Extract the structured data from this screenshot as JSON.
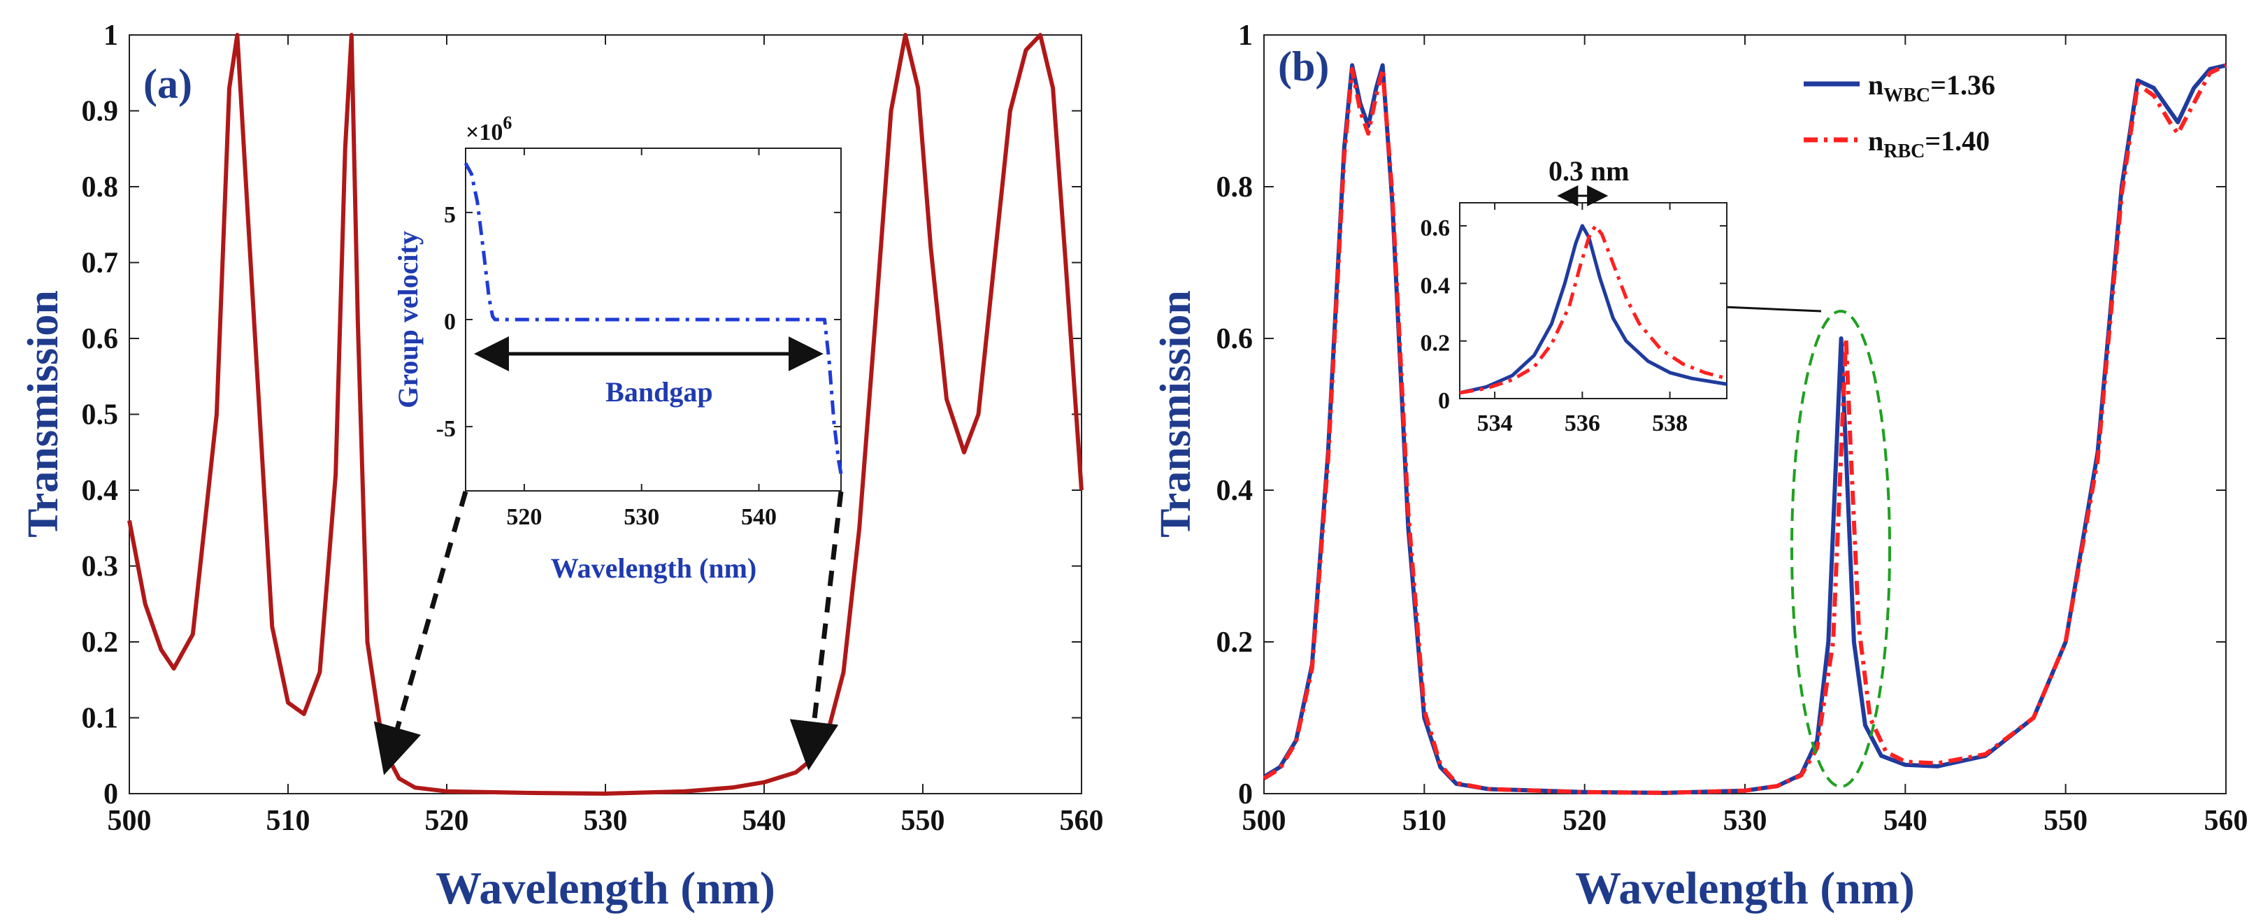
{
  "chart_data": [
    {
      "panel_label": "(a)",
      "type": "line",
      "xlabel": "Wavelength (nm)",
      "ylabel": "Transmission",
      "xlim": [
        500,
        560
      ],
      "ylim": [
        0,
        1
      ],
      "xticks": [
        "500",
        "510",
        "520",
        "530",
        "540",
        "550",
        "560"
      ],
      "yticks": [
        "0",
        "0.1",
        "0.2",
        "0.3",
        "0.4",
        "0.5",
        "0.6",
        "0.7",
        "0.8",
        "0.9",
        "1"
      ],
      "series": [
        {
          "name": "Transmission",
          "color": "#b01818",
          "x": [
            500,
            501,
            502,
            502.8,
            504,
            505.5,
            506.3,
            506.8,
            507.5,
            509,
            510,
            511,
            512,
            513,
            513.6,
            514.0,
            514.4,
            515,
            516,
            517,
            518,
            520,
            525,
            530,
            535,
            538,
            540,
            542,
            543,
            544,
            545,
            546,
            547,
            548,
            548.9,
            549.7,
            550.5,
            551.5,
            552.6,
            553.5,
            554.5,
            555.5,
            556.5,
            557.4,
            558.2,
            559,
            560
          ],
          "y": [
            0.36,
            0.25,
            0.19,
            0.165,
            0.21,
            0.5,
            0.93,
            1.0,
            0.75,
            0.22,
            0.12,
            0.105,
            0.16,
            0.42,
            0.85,
            1.0,
            0.62,
            0.2,
            0.06,
            0.02,
            0.008,
            0.003,
            0.001,
            0.0,
            0.003,
            0.008,
            0.015,
            0.028,
            0.045,
            0.08,
            0.16,
            0.35,
            0.62,
            0.9,
            1.0,
            0.93,
            0.72,
            0.52,
            0.45,
            0.5,
            0.7,
            0.9,
            0.98,
            1.0,
            0.93,
            0.7,
            0.4
          ]
        }
      ],
      "annotation_arrows_target_x": [
        516.5,
        543
      ],
      "inset": {
        "type": "line",
        "xlabel": "Wavelength (nm)",
        "ylabel": "Group velocity",
        "exponent_label": "×10",
        "exponent_power": "6",
        "xlim": [
          515,
          547
        ],
        "ylim": [
          -8,
          8
        ],
        "xticks": [
          "520",
          "530",
          "540"
        ],
        "yticks": [
          "5",
          "0",
          "-5"
        ],
        "series": [
          {
            "name": "Group velocity",
            "color": "#1f3bd6",
            "style": "dashdot",
            "x": [
              515,
              515.5,
              516,
              516.5,
              517,
              517.3,
              517.5,
              520,
              530,
              540,
              545.6,
              546.0,
              546.4,
              546.8,
              547
            ],
            "y": [
              7.3,
              6.8,
              5.5,
              3.3,
              1.0,
              0.15,
              0.0,
              0.0,
              0.0,
              0.0,
              0.0,
              -2.0,
              -4.8,
              -6.6,
              -7.2
            ]
          }
        ],
        "bandgap_label": "Bandgap",
        "bandgap_arrow_x": [
          517.5,
          545.5
        ]
      }
    },
    {
      "panel_label": "(b)",
      "type": "line",
      "xlabel": "Wavelength (nm)",
      "ylabel": "Transmission",
      "xlim": [
        500,
        560
      ],
      "ylim": [
        0,
        1
      ],
      "xticks": [
        "500",
        "510",
        "520",
        "530",
        "540",
        "550",
        "560"
      ],
      "yticks": [
        "0",
        "0.2",
        "0.4",
        "0.6",
        "0.8",
        "1"
      ],
      "legend": {
        "placement": "top-right",
        "entries": [
          {
            "main": "n",
            "sub": "WBC",
            "value": "=1.36",
            "color": "#1f3b9e",
            "style": "solid"
          },
          {
            "main": "n",
            "sub": "RBC",
            "value": "=1.40",
            "color": "#ff2020",
            "style": "dashdot"
          }
        ]
      },
      "series": [
        {
          "name": "n_WBC=1.36",
          "color": "#1f3b9e",
          "style": "solid",
          "x": [
            500,
            501,
            502,
            503,
            504,
            505,
            505.5,
            506,
            506.5,
            507,
            507.4,
            508,
            509,
            510,
            511,
            512,
            514,
            520,
            525,
            530,
            532,
            533.5,
            534.5,
            535.2,
            535.7,
            536.0,
            536.3,
            536.8,
            537.5,
            538.5,
            540,
            542,
            545,
            548,
            550,
            552,
            553.5,
            554.5,
            555.5,
            556.5,
            557,
            558,
            559,
            560
          ],
          "y": [
            0.022,
            0.035,
            0.07,
            0.17,
            0.45,
            0.85,
            0.96,
            0.91,
            0.88,
            0.93,
            0.96,
            0.78,
            0.35,
            0.1,
            0.035,
            0.013,
            0.006,
            0.002,
            0.001,
            0.004,
            0.01,
            0.025,
            0.07,
            0.2,
            0.45,
            0.6,
            0.45,
            0.2,
            0.09,
            0.05,
            0.038,
            0.036,
            0.05,
            0.1,
            0.2,
            0.45,
            0.8,
            0.94,
            0.93,
            0.9,
            0.885,
            0.93,
            0.955,
            0.96
          ]
        },
        {
          "name": "n_RBC=1.40",
          "color": "#ff2020",
          "style": "dashdot",
          "x": [
            500,
            501,
            502,
            503,
            504,
            505,
            505.5,
            506,
            506.5,
            507,
            507.4,
            508,
            509,
            510,
            511,
            512,
            514,
            520,
            525,
            530,
            532,
            533.5,
            534.5,
            535.5,
            536.0,
            536.3,
            536.6,
            537.1,
            537.8,
            538.8,
            540,
            542,
            545,
            548,
            550,
            552,
            553.5,
            554.5,
            555.5,
            556.5,
            557,
            558,
            559,
            560
          ],
          "y": [
            0.02,
            0.033,
            0.068,
            0.165,
            0.44,
            0.84,
            0.955,
            0.9,
            0.87,
            0.92,
            0.955,
            0.79,
            0.37,
            0.11,
            0.038,
            0.014,
            0.006,
            0.002,
            0.001,
            0.004,
            0.01,
            0.024,
            0.06,
            0.2,
            0.45,
            0.6,
            0.45,
            0.22,
            0.1,
            0.055,
            0.042,
            0.04,
            0.052,
            0.1,
            0.2,
            0.44,
            0.79,
            0.935,
            0.92,
            0.885,
            0.87,
            0.91,
            0.95,
            0.96
          ]
        }
      ],
      "inset": {
        "type": "line",
        "xlim": [
          533.2,
          539.3
        ],
        "ylim": [
          0,
          0.68
        ],
        "xticks": [
          "534",
          "536",
          "538"
        ],
        "yticks": [
          "0",
          "0.2",
          "0.4",
          "0.6"
        ],
        "annotation": "0.3 nm",
        "annotation_arrow_x": [
          536.0,
          536.3
        ],
        "series": [
          {
            "name": "n_WBC=1.36",
            "color": "#1f3b9e",
            "style": "solid",
            "x": [
              533.2,
              533.8,
              534.4,
              534.9,
              535.3,
              535.6,
              535.85,
              536.0,
              536.15,
              536.4,
              536.7,
              537.0,
              537.5,
              538.0,
              538.5,
              539.3
            ],
            "y": [
              0.02,
              0.04,
              0.08,
              0.15,
              0.26,
              0.4,
              0.54,
              0.6,
              0.56,
              0.42,
              0.28,
              0.2,
              0.13,
              0.09,
              0.07,
              0.05
            ]
          },
          {
            "name": "n_RBC=1.40",
            "color": "#ff2020",
            "style": "dashdot",
            "x": [
              533.2,
              533.8,
              534.4,
              534.9,
              535.3,
              535.7,
              535.95,
              536.15,
              536.3,
              536.45,
              536.7,
              537.0,
              537.3,
              537.8,
              538.3,
              538.8,
              539.3
            ],
            "y": [
              0.02,
              0.035,
              0.065,
              0.11,
              0.19,
              0.32,
              0.46,
              0.56,
              0.6,
              0.57,
              0.47,
              0.35,
              0.26,
              0.17,
              0.12,
              0.09,
              0.07
            ]
          }
        ]
      }
    }
  ]
}
